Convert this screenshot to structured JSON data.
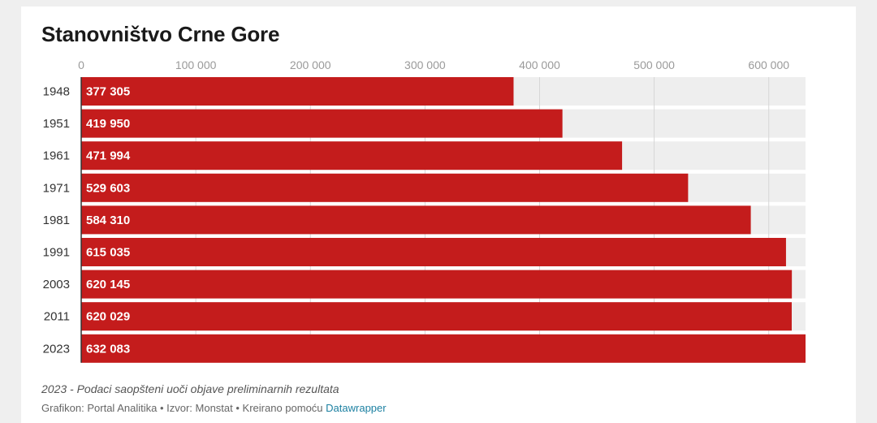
{
  "chart_data": {
    "type": "bar",
    "orientation": "horizontal",
    "title": "Stanovništvo Crne Gore",
    "categories": [
      "1948",
      "1951",
      "1961",
      "1971",
      "1981",
      "1991",
      "2003",
      "2011",
      "2023"
    ],
    "values": [
      377305,
      419950,
      471994,
      529603,
      584310,
      615035,
      620145,
      620029,
      632083
    ],
    "value_labels": [
      "377 305",
      "419 950",
      "471 994",
      "529 603",
      "584 310",
      "615 035",
      "620 145",
      "620 029",
      "632 083"
    ],
    "x_ticks": [
      0,
      100000,
      200000,
      300000,
      400000,
      500000,
      600000
    ],
    "x_tick_labels": [
      "0",
      "100 000",
      "200 000",
      "300 000",
      "400 000",
      "500 000",
      "600 000"
    ],
    "xlim": [
      0,
      632083
    ],
    "x_axis_position": "top",
    "grid": true,
    "bar_color": "#c41c1c",
    "track_color": "#eeeeee",
    "label_color": "#ffffff"
  },
  "notes": {
    "footnote": "2023 - Podaci saopšteni uoči objave preliminarnih rezultata",
    "credits_prefix": "Grafikon: Portal Analitika • Izvor: Monstat • Kreirano pomoću ",
    "credits_link": "Datawrapper"
  }
}
